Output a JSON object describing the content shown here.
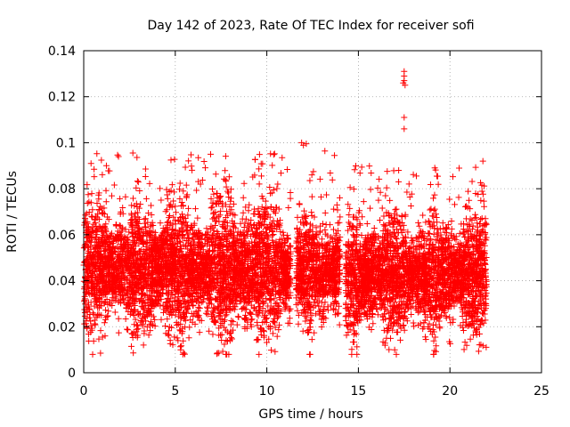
{
  "chart_data": {
    "type": "scatter",
    "title": "Day 142 of 2023, Rate Of TEC Index for receiver sofi",
    "xlabel": "GPS time / hours",
    "ylabel": "ROTI / TECUs",
    "xlim": [
      0,
      25
    ],
    "ylim": [
      0,
      0.14
    ],
    "x_ticks": [
      "0",
      "5",
      "10",
      "15",
      "20",
      "25"
    ],
    "y_ticks": [
      "0",
      "0.02",
      "0.04",
      "0.06",
      "0.08",
      "0.1",
      "0.12",
      "0.14"
    ],
    "grid": true,
    "marker": "plus",
    "color": "#ff0000",
    "series": [
      {
        "data_segments": [
          {
            "x_start": 0.0,
            "x_end": 11.3,
            "y_range_typical": [
              0.015,
              0.075
            ],
            "y_peak": 0.096
          },
          {
            "x_start": 11.6,
            "x_end": 14.0,
            "y_range_typical": [
              0.02,
              0.07
            ],
            "y_peak": 0.1
          },
          {
            "x_start": 14.3,
            "x_end": 22.0,
            "y_range_typical": [
              0.015,
              0.07
            ],
            "y_peak": 0.09
          }
        ],
        "outliers": [
          {
            "x": 17.5,
            "y": 0.131
          },
          {
            "x": 17.5,
            "y": 0.129
          },
          {
            "x": 17.5,
            "y": 0.127
          },
          {
            "x": 17.55,
            "y": 0.125
          },
          {
            "x": 17.45,
            "y": 0.126
          },
          {
            "x": 17.5,
            "y": 0.111
          },
          {
            "x": 17.5,
            "y": 0.106
          },
          {
            "x": 11.9,
            "y": 0.1
          },
          {
            "x": 17.2,
            "y": 0.088
          },
          {
            "x": 21.8,
            "y": 0.092
          },
          {
            "x": 0.4,
            "y": 0.091
          },
          {
            "x": 1.9,
            "y": 0.094
          }
        ]
      }
    ]
  }
}
